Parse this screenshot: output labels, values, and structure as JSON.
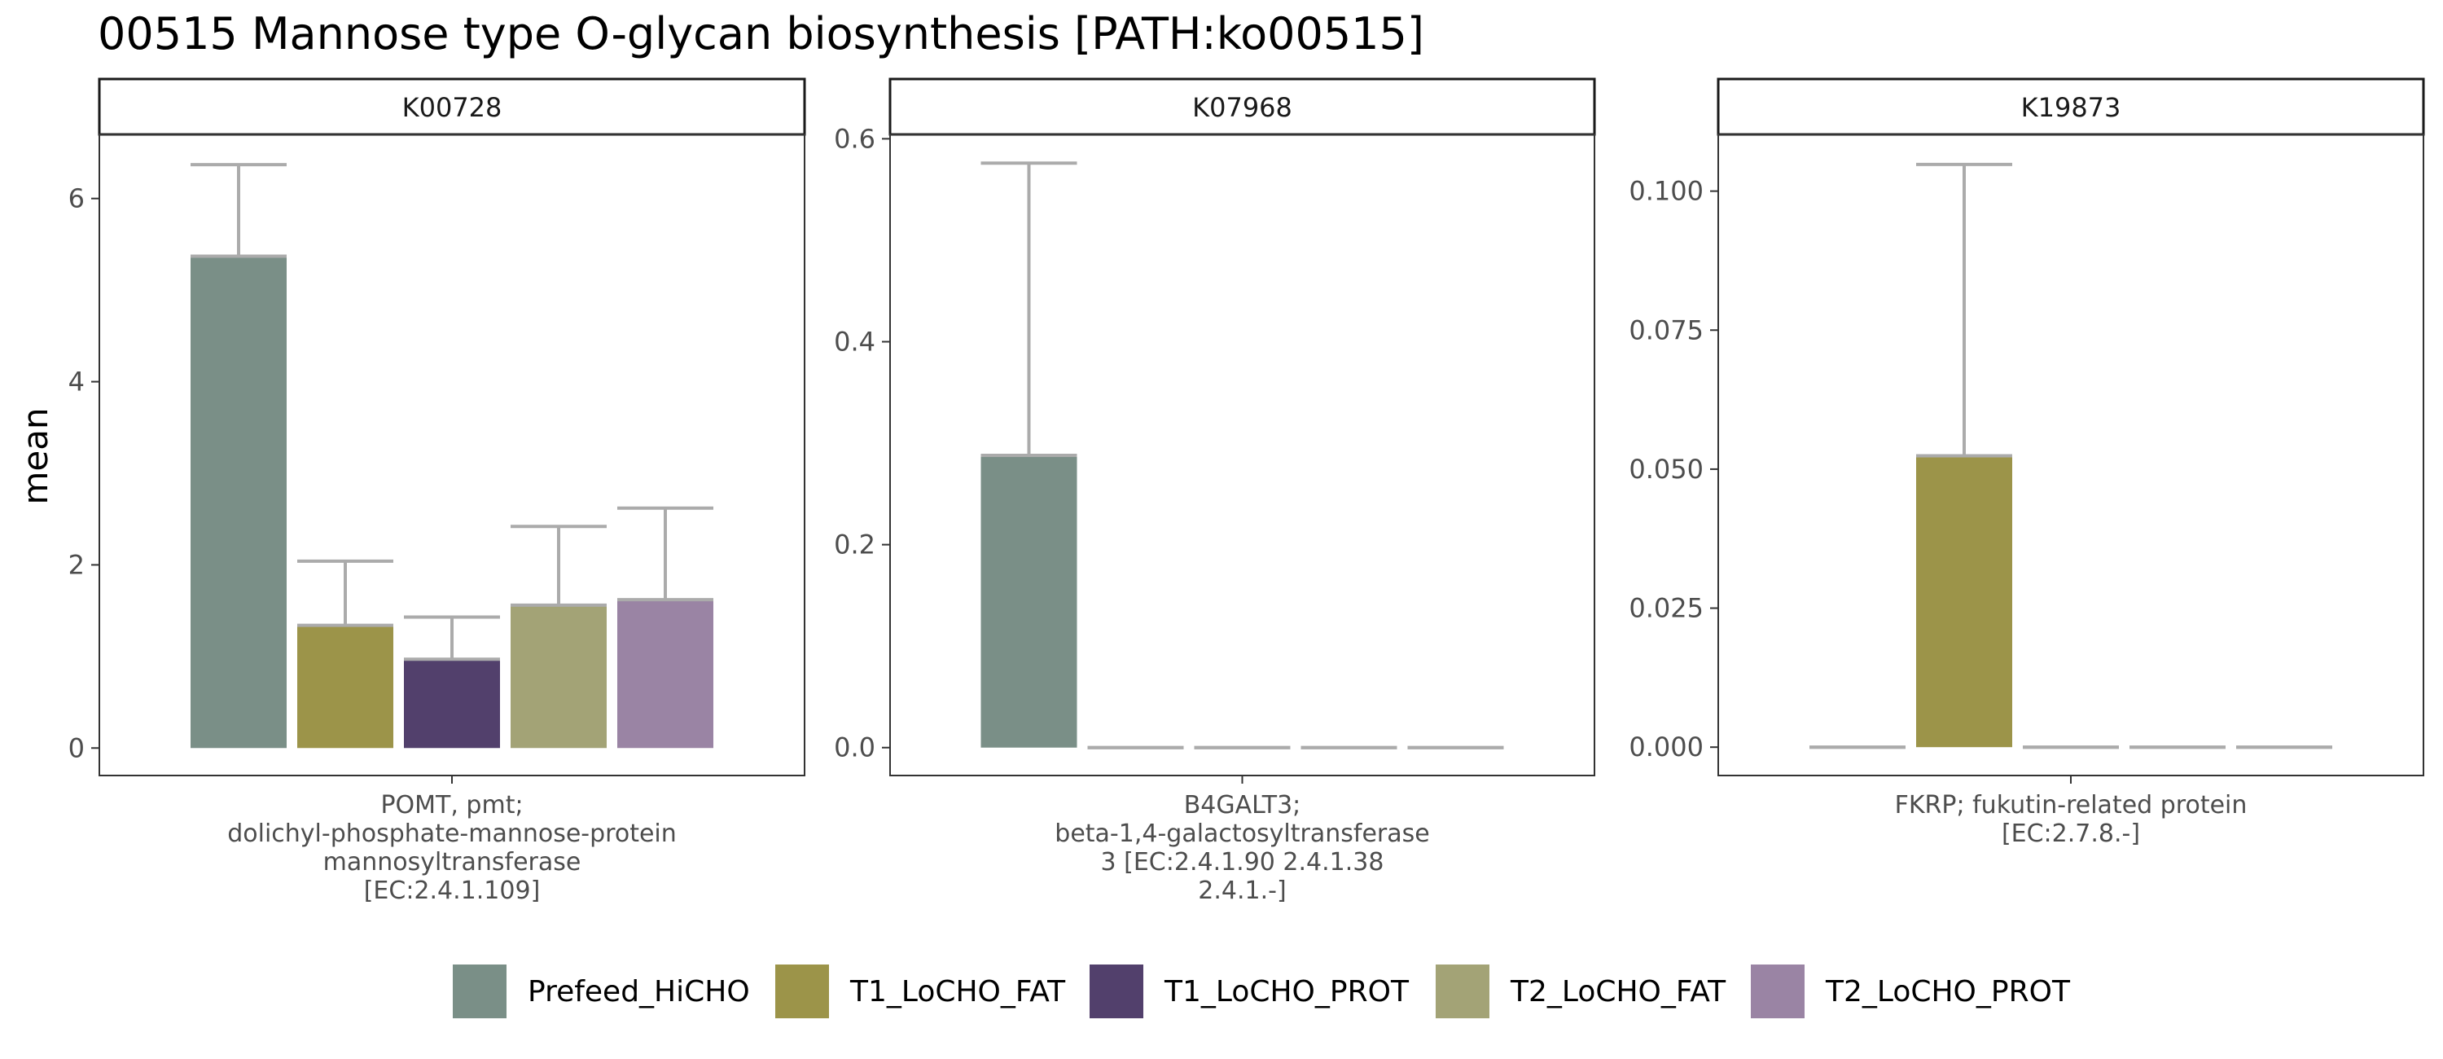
{
  "title": "00515 Mannose type O-glycan biosynthesis [PATH:ko00515]",
  "y_axis_label": "mean",
  "colors": {
    "Prefeed_HiCHO": "#7a8f87",
    "T1_LoCHO_FAT": "#9c9449",
    "T1_LoCHO_PROT": "#52406c",
    "T2_LoCHO_FAT": "#a3a376",
    "T2_LoCHO_PROT": "#9a84a4",
    "errorbar": "#ababab",
    "strip_bg": "#ffffff",
    "axis_text": "#4d4d4d"
  },
  "chart_data": [
    {
      "type": "bar",
      "panel": "K00728",
      "x_label": [
        "POMT, pmt;",
        "dolichyl-phosphate-mannose-protein",
        "mannosyltransferase",
        "[EC:2.4.1.109]"
      ],
      "series": [
        {
          "name": "Prefeed_HiCHO",
          "mean": 5.37,
          "error_upper": 6.37
        },
        {
          "name": "T1_LoCHO_FAT",
          "mean": 1.34,
          "error_upper": 2.04
        },
        {
          "name": "T1_LoCHO_PROT",
          "mean": 0.97,
          "error_upper": 1.43
        },
        {
          "name": "T2_LoCHO_FAT",
          "mean": 1.56,
          "error_upper": 2.42
        },
        {
          "name": "T2_LoCHO_PROT",
          "mean": 1.62,
          "error_upper": 2.62
        }
      ],
      "ylim": [
        -0.3,
        6.7
      ],
      "yticks": [
        0,
        2,
        4,
        6
      ],
      "ytick_labels": [
        "0",
        "2",
        "4",
        "6"
      ]
    },
    {
      "type": "bar",
      "panel": "K07968",
      "x_label": [
        "B4GALT3;",
        "beta-1,4-galactosyltransferase",
        "3 [EC:2.4.1.90 2.4.1.38",
        "2.4.1.-]"
      ],
      "series": [
        {
          "name": "Prefeed_HiCHO",
          "mean": 0.288,
          "error_upper": 0.576
        },
        {
          "name": "T1_LoCHO_FAT",
          "mean": 0,
          "error_upper": 0
        },
        {
          "name": "T1_LoCHO_PROT",
          "mean": 0,
          "error_upper": 0
        },
        {
          "name": "T2_LoCHO_FAT",
          "mean": 0,
          "error_upper": 0
        },
        {
          "name": "T2_LoCHO_PROT",
          "mean": 0,
          "error_upper": 0
        }
      ],
      "ylim": [
        -0.0275,
        0.6043
      ],
      "yticks": [
        0,
        0.2,
        0.4,
        0.6
      ],
      "ytick_labels": [
        "0.0",
        "0.2",
        "0.4",
        "0.6"
      ]
    },
    {
      "type": "bar",
      "panel": "K19873",
      "x_label": [
        "FKRP; fukutin-related protein",
        "[EC:2.7.8.-]"
      ],
      "series": [
        {
          "name": "Prefeed_HiCHO",
          "mean": 0,
          "error_upper": 0
        },
        {
          "name": "T1_LoCHO_FAT",
          "mean": 0.0524,
          "error_upper": 0.1048
        },
        {
          "name": "T1_LoCHO_PROT",
          "mean": 0,
          "error_upper": 0
        },
        {
          "name": "T2_LoCHO_FAT",
          "mean": 0,
          "error_upper": 0
        },
        {
          "name": "T2_LoCHO_PROT",
          "mean": 0,
          "error_upper": 0
        }
      ],
      "ylim": [
        -0.0051,
        0.1102
      ],
      "yticks": [
        0,
        0.025,
        0.05,
        0.075,
        0.1
      ],
      "ytick_labels": [
        "0.000",
        "0.025",
        "0.050",
        "0.075",
        "0.100"
      ]
    }
  ],
  "legend": {
    "position": "bottom",
    "items": [
      "Prefeed_HiCHO",
      "T1_LoCHO_FAT",
      "T1_LoCHO_PROT",
      "T2_LoCHO_FAT",
      "T2_LoCHO_PROT"
    ]
  }
}
